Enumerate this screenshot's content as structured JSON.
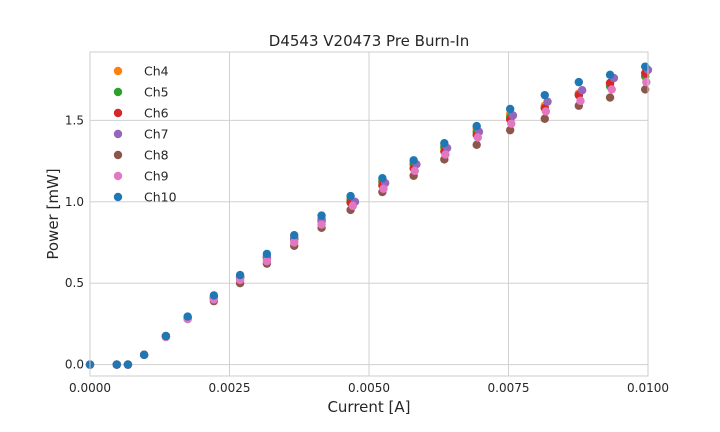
{
  "chart_data": {
    "type": "scatter",
    "title": "D4543 V20473 Pre Burn-In",
    "xlabel": "Current [A]",
    "ylabel": "Power [mW]",
    "xlim": [
      0.0,
      0.01
    ],
    "ylim": [
      -0.07,
      1.92
    ],
    "xticks": [
      "0.0000",
      "0.0025",
      "0.0050",
      "0.0075",
      "0.0100"
    ],
    "yticks": [
      "0.0",
      "0.5",
      "1.0",
      "1.5"
    ],
    "grid": true,
    "legend_position": "top-left",
    "series": [
      {
        "name": "Ch4",
        "color": "#ff7f0e",
        "points": [
          [
            0,
            0
          ],
          [
            0.00048,
            0
          ],
          [
            0.00068,
            0
          ],
          [
            0.00097,
            0.06
          ],
          [
            0.00136,
            0.175
          ],
          [
            0.00175,
            0.285
          ],
          [
            0.00222,
            0.415
          ],
          [
            0.00269,
            0.54
          ],
          [
            0.00317,
            0.665
          ],
          [
            0.00366,
            0.78
          ],
          [
            0.00415,
            0.895
          ],
          [
            0.00467,
            1.02
          ],
          [
            0.00524,
            1.13
          ],
          [
            0.0058,
            1.24
          ],
          [
            0.00635,
            1.345
          ],
          [
            0.00693,
            1.45
          ],
          [
            0.00753,
            1.54
          ],
          [
            0.00815,
            1.59
          ],
          [
            0.00876,
            1.665
          ],
          [
            0.00932,
            1.725
          ],
          [
            0.00995,
            1.79
          ]
        ]
      },
      {
        "name": "Ch5",
        "color": "#2ca02c",
        "points": [
          [
            0,
            0
          ],
          [
            0.00048,
            0
          ],
          [
            0.00068,
            0
          ],
          [
            0.00097,
            0.06
          ],
          [
            0.00136,
            0.175
          ],
          [
            0.00175,
            0.285
          ],
          [
            0.00222,
            0.41
          ],
          [
            0.00269,
            0.535
          ],
          [
            0.00317,
            0.66
          ],
          [
            0.00366,
            0.775
          ],
          [
            0.00415,
            0.89
          ],
          [
            0.00467,
            1.01
          ],
          [
            0.00524,
            1.12
          ],
          [
            0.0058,
            1.23
          ],
          [
            0.00635,
            1.335
          ],
          [
            0.00693,
            1.43
          ],
          [
            0.00753,
            1.52
          ],
          [
            0.00815,
            1.575
          ],
          [
            0.00876,
            1.655
          ],
          [
            0.00932,
            1.71
          ],
          [
            0.00995,
            1.77
          ]
        ]
      },
      {
        "name": "Ch6",
        "color": "#d62728",
        "points": [
          [
            0,
            0
          ],
          [
            0.00048,
            0
          ],
          [
            0.00068,
            0
          ],
          [
            0.00097,
            0.06
          ],
          [
            0.00136,
            0.175
          ],
          [
            0.00175,
            0.285
          ],
          [
            0.00222,
            0.41
          ],
          [
            0.00269,
            0.535
          ],
          [
            0.00317,
            0.655
          ],
          [
            0.00366,
            0.77
          ],
          [
            0.00415,
            0.88
          ],
          [
            0.00467,
            0.995
          ],
          [
            0.00524,
            1.1
          ],
          [
            0.0058,
            1.205
          ],
          [
            0.00635,
            1.31
          ],
          [
            0.00693,
            1.41
          ],
          [
            0.00753,
            1.505
          ],
          [
            0.00815,
            1.575
          ],
          [
            0.00876,
            1.655
          ],
          [
            0.00932,
            1.73
          ],
          [
            0.00995,
            1.79
          ]
        ]
      },
      {
        "name": "Ch7",
        "color": "#9467bd",
        "points": [
          [
            0,
            0
          ],
          [
            0.00048,
            0
          ],
          [
            0.00068,
            0
          ],
          [
            0.00097,
            0.06
          ],
          [
            0.00136,
            0.175
          ],
          [
            0.00175,
            0.29
          ],
          [
            0.00222,
            0.415
          ],
          [
            0.00269,
            0.54
          ],
          [
            0.00317,
            0.66
          ],
          [
            0.00366,
            0.775
          ],
          [
            0.00415,
            0.885
          ],
          [
            0.00475,
            1.0
          ],
          [
            0.00529,
            1.115
          ],
          [
            0.00585,
            1.23
          ],
          [
            0.0064,
            1.33
          ],
          [
            0.00697,
            1.43
          ],
          [
            0.00758,
            1.53
          ],
          [
            0.0082,
            1.615
          ],
          [
            0.00882,
            1.685
          ],
          [
            0.00939,
            1.76
          ],
          [
            0.01,
            1.81
          ]
        ]
      },
      {
        "name": "Ch8",
        "color": "#8c564b",
        "points": [
          [
            0,
            0
          ],
          [
            0.00048,
            0
          ],
          [
            0.00068,
            0
          ],
          [
            0.00097,
            0.06
          ],
          [
            0.00136,
            0.17
          ],
          [
            0.00175,
            0.28
          ],
          [
            0.00222,
            0.39
          ],
          [
            0.00269,
            0.5
          ],
          [
            0.00317,
            0.62
          ],
          [
            0.00366,
            0.73
          ],
          [
            0.00415,
            0.84
          ],
          [
            0.00467,
            0.95
          ],
          [
            0.00524,
            1.06
          ],
          [
            0.0058,
            1.16
          ],
          [
            0.00635,
            1.26
          ],
          [
            0.00693,
            1.35
          ],
          [
            0.00753,
            1.44
          ],
          [
            0.00815,
            1.51
          ],
          [
            0.00876,
            1.59
          ],
          [
            0.00932,
            1.64
          ],
          [
            0.00995,
            1.69
          ]
        ]
      },
      {
        "name": "Ch9",
        "color": "#e377c2",
        "points": [
          [
            0,
            0
          ],
          [
            0.00048,
            0
          ],
          [
            0.00068,
            0
          ],
          [
            0.00097,
            0.06
          ],
          [
            0.00136,
            0.17
          ],
          [
            0.00175,
            0.28
          ],
          [
            0.00222,
            0.4
          ],
          [
            0.00269,
            0.52
          ],
          [
            0.00317,
            0.635
          ],
          [
            0.00366,
            0.75
          ],
          [
            0.00415,
            0.86
          ],
          [
            0.00471,
            0.975
          ],
          [
            0.00526,
            1.08
          ],
          [
            0.00582,
            1.19
          ],
          [
            0.00637,
            1.29
          ],
          [
            0.00695,
            1.395
          ],
          [
            0.00755,
            1.48
          ],
          [
            0.00817,
            1.555
          ],
          [
            0.00879,
            1.62
          ],
          [
            0.00935,
            1.69
          ],
          [
            0.00997,
            1.735
          ]
        ]
      },
      {
        "name": "Ch10",
        "color": "#1f77b4",
        "points": [
          [
            0,
            0
          ],
          [
            0.00048,
            0
          ],
          [
            0.00068,
            0
          ],
          [
            0.00097,
            0.06
          ],
          [
            0.00136,
            0.175
          ],
          [
            0.00175,
            0.295
          ],
          [
            0.00222,
            0.425
          ],
          [
            0.00269,
            0.55
          ],
          [
            0.00317,
            0.68
          ],
          [
            0.00366,
            0.795
          ],
          [
            0.00415,
            0.915
          ],
          [
            0.00467,
            1.035
          ],
          [
            0.00524,
            1.145
          ],
          [
            0.0058,
            1.255
          ],
          [
            0.00635,
            1.36
          ],
          [
            0.00693,
            1.465
          ],
          [
            0.00753,
            1.57
          ],
          [
            0.00815,
            1.655
          ],
          [
            0.00876,
            1.735
          ],
          [
            0.00932,
            1.78
          ],
          [
            0.00995,
            1.83
          ]
        ]
      }
    ]
  }
}
